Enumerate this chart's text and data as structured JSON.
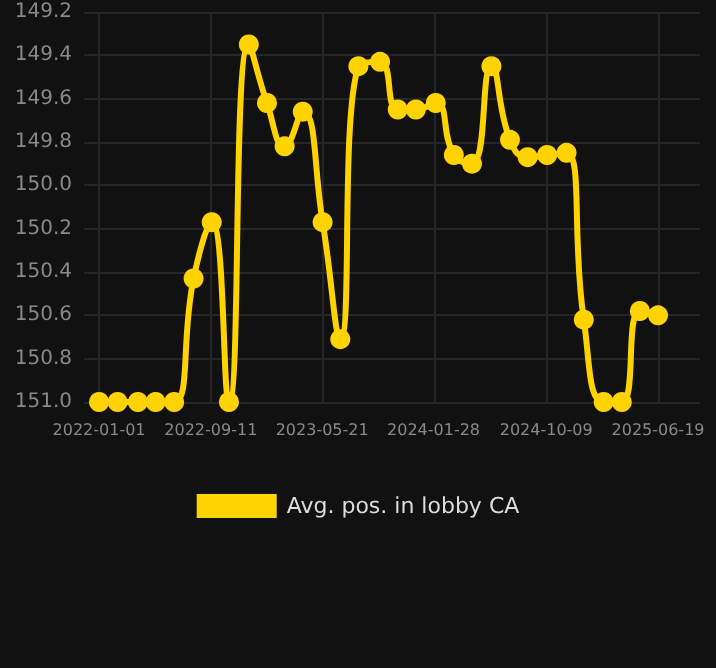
{
  "chart_data": {
    "type": "line",
    "xlabel": null,
    "x": [
      "2022-01-01",
      "2022-02-12",
      "2022-03-30",
      "2022-05-09",
      "2022-06-20",
      "2022-08-03",
      "2022-09-13",
      "2022-10-22",
      "2022-12-06",
      "2023-01-16",
      "2023-02-25",
      "2023-04-07",
      "2023-05-22",
      "2023-07-01",
      "2023-08-11",
      "2023-09-29",
      "2023-11-08",
      "2023-12-19",
      "2024-02-02",
      "2024-03-14",
      "2024-04-24",
      "2024-06-07",
      "2024-07-19",
      "2024-08-28",
      "2024-10-11",
      "2024-11-24",
      "2025-01-02",
      "2025-02-16",
      "2025-03-29",
      "2025-05-09",
      "2025-06-19"
    ],
    "series": [
      {
        "name": "Avg. pos. in lobby CA",
        "color": "#ffd300",
        "values": [
          151.0,
          151.0,
          151.0,
          151.0,
          151.0,
          150.43,
          150.17,
          151.0,
          149.35,
          149.62,
          149.82,
          149.66,
          150.17,
          150.71,
          149.45,
          149.43,
          149.65,
          149.65,
          149.62,
          149.86,
          149.9,
          149.45,
          149.79,
          149.87,
          149.86,
          149.85,
          150.62,
          151.0,
          151.0,
          150.58,
          150.6
        ]
      }
    ],
    "xlim": [
      "2021-11-28",
      "2025-09-22"
    ],
    "xticks": [
      "2022-01-01",
      "2022-09-11",
      "2023-05-21",
      "2024-01-28",
      "2024-10-09",
      "2025-06-19"
    ],
    "ylim": [
      151.0,
      149.2
    ],
    "yticks": [
      {
        "value": 149.2,
        "label": "149.2"
      },
      {
        "value": 149.4,
        "label": "149.4"
      },
      {
        "value": 149.6,
        "label": "149.6"
      },
      {
        "value": 149.8,
        "label": "149.8"
      },
      {
        "value": 150.0,
        "label": "150.0"
      },
      {
        "value": 150.2,
        "label": "150.2"
      },
      {
        "value": 150.4,
        "label": "150.4"
      },
      {
        "value": 150.6,
        "label": "150.6"
      },
      {
        "value": 150.8,
        "label": "150.8"
      },
      {
        "value": 151.0,
        "label": "151.0"
      }
    ],
    "grid": true,
    "legend": "bottom",
    "marker": "circle",
    "line_style": "solid"
  }
}
